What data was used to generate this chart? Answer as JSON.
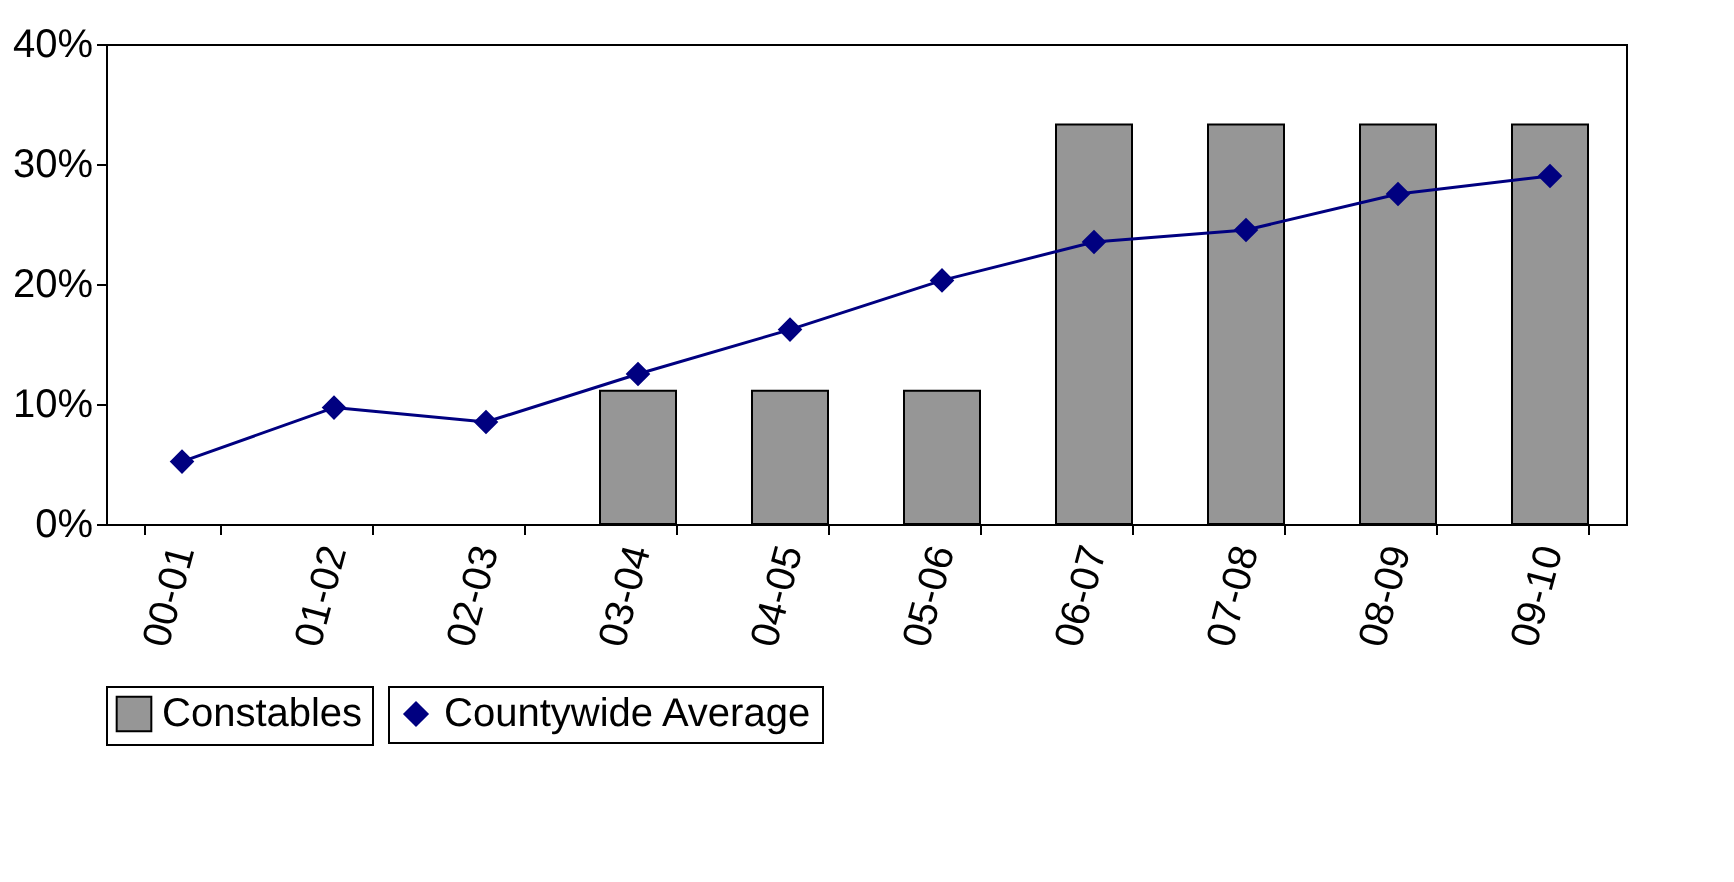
{
  "chart_data": {
    "type": "bar",
    "categories": [
      "00-01",
      "01-02",
      "02-03",
      "03-04",
      "04-05",
      "05-06",
      "06-07",
      "07-08",
      "08-09",
      "09-10"
    ],
    "series": [
      {
        "name": "Constables",
        "color": "#969696",
        "values": [
          null,
          null,
          null,
          11.1,
          11.1,
          11.1,
          33.3,
          33.3,
          33.3,
          33.3
        ]
      },
      {
        "name": "Countywide Average",
        "type": "line",
        "color": "#000080",
        "marker": "diamond",
        "line_style": "solid",
        "values": [
          5.2,
          9.7,
          8.5,
          12.5,
          16.2,
          20.3,
          23.5,
          24.5,
          27.5,
          29.0
        ]
      }
    ],
    "ylim": [
      0,
      40
    ],
    "yticks": [
      {
        "value": 0,
        "label": "0%"
      },
      {
        "value": 10,
        "label": "10%"
      },
      {
        "value": 20,
        "label": "20%"
      },
      {
        "value": 30,
        "label": "30%"
      },
      {
        "value": 40,
        "label": "40%"
      }
    ],
    "grid": false,
    "legend": "bottom"
  }
}
